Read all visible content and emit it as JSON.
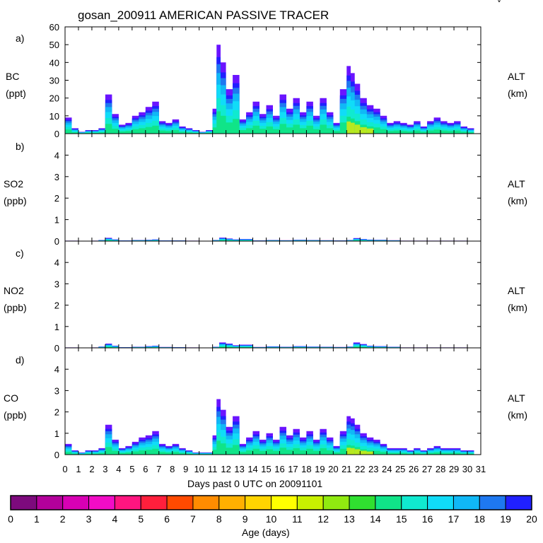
{
  "title": "gosan_200911 AMERICAN PASSIVE TRACER",
  "corner_mark": "\\/",
  "x_axis": {
    "label": "Days past 0 UTC on 20091101",
    "ticks": [
      "0",
      "1",
      "2",
      "3",
      "4",
      "5",
      "6",
      "7",
      "8",
      "9",
      "10",
      "11",
      "12",
      "13",
      "14",
      "15",
      "16",
      "17",
      "18",
      "19",
      "20",
      "21",
      "22",
      "23",
      "24",
      "25",
      "26",
      "27",
      "28",
      "29",
      "30",
      "31"
    ]
  },
  "colorbar": {
    "label": "Age (days)",
    "ticks": [
      "0",
      "1",
      "2",
      "3",
      "4",
      "5",
      "6",
      "7",
      "8",
      "9",
      "10",
      "11",
      "12",
      "13",
      "14",
      "15",
      "16",
      "17",
      "18",
      "19",
      "20"
    ],
    "colors": [
      "#7d0a7d",
      "#b3009b",
      "#d800b4",
      "#f20cc6",
      "#ff1580",
      "#ff1f3c",
      "#ff4a00",
      "#ff8c00",
      "#ffb000",
      "#ffd400",
      "#ffff00",
      "#c8f000",
      "#90ea10",
      "#30e030",
      "#10e488",
      "#10ead0",
      "#10dcf8",
      "#10b8f6",
      "#1e78f0",
      "#2020ff",
      "#6a14ff"
    ]
  },
  "chart_data": [
    {
      "panel": "a)",
      "type": "area",
      "species": "BC",
      "unit": "(ppt)",
      "right_label": "ALT",
      "right_unit": "(km)",
      "ylim": [
        0,
        60
      ],
      "yticks": [
        "0",
        "10",
        "20",
        "30",
        "40",
        "50",
        "60"
      ],
      "x": [
        0,
        0.5,
        1,
        1.5,
        2,
        2.5,
        3,
        3.5,
        4,
        4.5,
        5,
        5.5,
        6,
        6.5,
        7,
        7.5,
        8,
        8.5,
        9,
        9.5,
        10,
        10.5,
        11,
        11.3,
        11.6,
        12,
        12.5,
        13,
        13.5,
        14,
        14.5,
        15,
        15.5,
        16,
        16.5,
        17,
        17.5,
        18,
        18.5,
        19,
        19.5,
        20,
        20.5,
        21,
        21.3,
        21.6,
        22,
        22.5,
        23,
        23.5,
        24,
        24.5,
        25,
        25.5,
        26,
        26.5,
        27,
        27.5,
        28,
        28.5,
        29,
        29.5,
        30
      ],
      "values": [
        9,
        3,
        1,
        2,
        2,
        3,
        22,
        11,
        5,
        6,
        10,
        12,
        15,
        18,
        7,
        6,
        8,
        4,
        3,
        2,
        1,
        2,
        14,
        50,
        40,
        25,
        33,
        8,
        12,
        18,
        11,
        16,
        10,
        22,
        14,
        20,
        12,
        18,
        10,
        20,
        12,
        6,
        25,
        38,
        34,
        28,
        20,
        16,
        14,
        10,
        6,
        7,
        6,
        5,
        7,
        4,
        7,
        9,
        7,
        6,
        7,
        4,
        3
      ]
    },
    {
      "panel": "b)",
      "type": "area",
      "species": "SO2",
      "unit": "(ppb)",
      "right_label": "ALT",
      "right_unit": "(km)",
      "ylim": [
        0,
        5
      ],
      "yticks": [
        "0",
        "1",
        "2",
        "3",
        "4"
      ],
      "x": [
        0,
        1,
        2,
        2.5,
        3,
        3.5,
        4,
        5,
        6,
        6.5,
        7,
        8,
        9,
        10,
        11,
        11.5,
        12,
        12.5,
        13,
        14,
        15,
        16,
        17,
        18,
        19,
        20,
        21,
        21.5,
        22,
        22.5,
        23,
        24,
        25,
        26,
        27,
        28,
        29,
        30
      ],
      "values": [
        0.02,
        0.01,
        0.02,
        0.05,
        0.15,
        0.08,
        0.03,
        0.05,
        0.06,
        0.08,
        0.03,
        0.03,
        0.02,
        0.01,
        0.05,
        0.16,
        0.12,
        0.08,
        0.1,
        0.03,
        0.05,
        0.04,
        0.06,
        0.05,
        0.04,
        0.03,
        0.05,
        0.14,
        0.1,
        0.07,
        0.06,
        0.04,
        0.02,
        0.02,
        0.02,
        0.02,
        0.02,
        0.01
      ]
    },
    {
      "panel": "c)",
      "type": "area",
      "species": "NO2",
      "unit": "(ppb)",
      "right_label": "ALT",
      "right_unit": "(km)",
      "ylim": [
        0,
        5
      ],
      "yticks": [
        "0",
        "1",
        "2",
        "3",
        "4"
      ],
      "x": [
        0,
        1,
        2,
        2.5,
        3,
        3.5,
        4,
        5,
        6,
        6.5,
        7,
        8,
        9,
        10,
        11,
        11.5,
        12,
        12.5,
        13,
        14,
        15,
        16,
        17,
        18,
        19,
        20,
        21,
        21.5,
        22,
        22.5,
        23,
        24,
        25,
        26,
        27,
        28,
        29,
        30
      ],
      "values": [
        0.02,
        0.01,
        0.02,
        0.06,
        0.2,
        0.1,
        0.03,
        0.05,
        0.08,
        0.1,
        0.04,
        0.03,
        0.02,
        0.01,
        0.05,
        0.25,
        0.2,
        0.12,
        0.15,
        0.04,
        0.07,
        0.05,
        0.08,
        0.06,
        0.05,
        0.04,
        0.06,
        0.25,
        0.18,
        0.1,
        0.08,
        0.05,
        0.02,
        0.02,
        0.02,
        0.02,
        0.02,
        0.01
      ]
    },
    {
      "panel": "d)",
      "type": "area",
      "species": "CO",
      "unit": "(ppb)",
      "right_label": "ALT",
      "right_unit": "(km)",
      "ylim": [
        0,
        5
      ],
      "yticks": [
        "0",
        "1",
        "2",
        "3",
        "4"
      ],
      "x": [
        0,
        0.5,
        1,
        1.5,
        2,
        2.5,
        3,
        3.5,
        4,
        4.5,
        5,
        5.5,
        6,
        6.5,
        7,
        7.5,
        8,
        8.5,
        9,
        9.5,
        10,
        10.5,
        11,
        11.3,
        11.6,
        12,
        12.5,
        13,
        13.5,
        14,
        14.5,
        15,
        15.5,
        16,
        16.5,
        17,
        17.5,
        18,
        18.5,
        19,
        19.5,
        20,
        20.5,
        21,
        21.3,
        21.6,
        22,
        22.5,
        23,
        23.5,
        24,
        24.5,
        25,
        25.5,
        26,
        26.5,
        27,
        27.5,
        28,
        28.5,
        29,
        29.5,
        30
      ],
      "values": [
        0.5,
        0.2,
        0.1,
        0.2,
        0.2,
        0.3,
        1.4,
        0.7,
        0.3,
        0.4,
        0.6,
        0.8,
        0.9,
        1.1,
        0.5,
        0.4,
        0.5,
        0.3,
        0.2,
        0.1,
        0.1,
        0.1,
        0.9,
        2.6,
        2.1,
        1.3,
        1.8,
        0.5,
        0.8,
        1.1,
        0.7,
        1.0,
        0.7,
        1.3,
        0.9,
        1.2,
        0.8,
        1.1,
        0.7,
        1.2,
        0.8,
        0.4,
        1.1,
        1.8,
        1.7,
        1.4,
        1.0,
        0.8,
        0.7,
        0.5,
        0.3,
        0.3,
        0.3,
        0.2,
        0.3,
        0.2,
        0.3,
        0.4,
        0.3,
        0.3,
        0.3,
        0.2,
        0.2
      ]
    }
  ]
}
